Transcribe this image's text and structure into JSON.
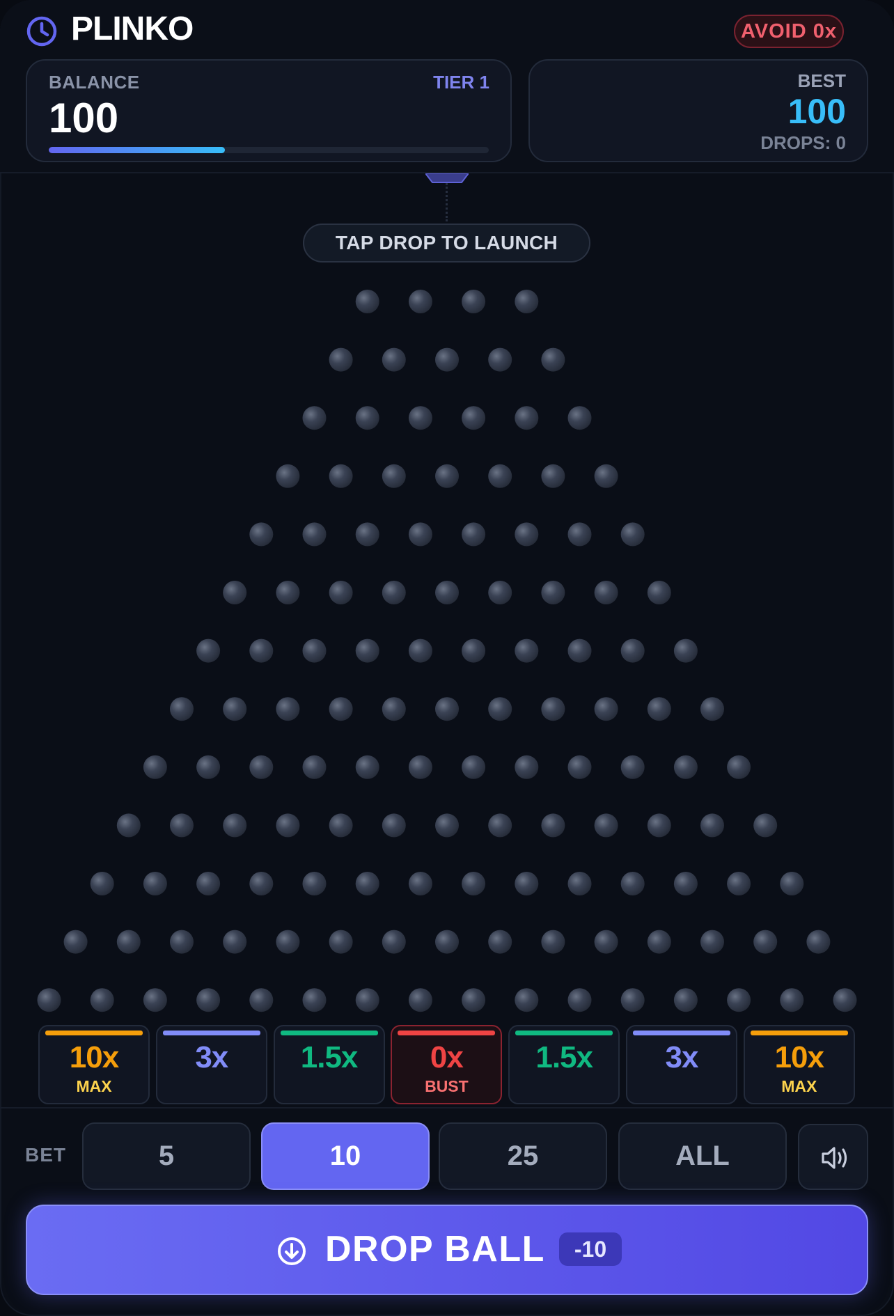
{
  "header": {
    "title": "PLINKO",
    "avoid_badge": "AVOID 0x",
    "icons": {
      "brand": "clock-icon"
    }
  },
  "balance_card": {
    "label": "BALANCE",
    "value": "100",
    "tier": "TIER 1",
    "progress_fraction": 0.4
  },
  "best_card": {
    "label": "BEST",
    "value": "100",
    "drops": "DROPS: 0"
  },
  "board": {
    "hint": "TAP DROP TO LAUNCH",
    "peg_rows": [
      4,
      5,
      6,
      7,
      8,
      9,
      10,
      11,
      12,
      13,
      14,
      15,
      16
    ],
    "peg_color": "#3a4254"
  },
  "buckets": [
    {
      "mult": "10x",
      "sub": "MAX",
      "color": "#f59e0b",
      "sub_color": "#fcd34d"
    },
    {
      "mult": "3x",
      "sub": "",
      "color": "#818cf8",
      "sub_color": "#818cf8"
    },
    {
      "mult": "1.5x",
      "sub": "",
      "color": "#10b981",
      "sub_color": "#10b981"
    },
    {
      "mult": "0x",
      "sub": "BUST",
      "color": "#ef4444",
      "sub_color": "#f87171"
    },
    {
      "mult": "1.5x",
      "sub": "",
      "color": "#10b981",
      "sub_color": "#10b981"
    },
    {
      "mult": "3x",
      "sub": "",
      "color": "#818cf8",
      "sub_color": "#818cf8"
    },
    {
      "mult": "10x",
      "sub": "MAX",
      "color": "#f59e0b",
      "sub_color": "#fcd34d"
    }
  ],
  "controls": {
    "bet_label": "BET",
    "bets": [
      {
        "label": "5",
        "active": false
      },
      {
        "label": "10",
        "active": true
      },
      {
        "label": "25",
        "active": false
      },
      {
        "label": "ALL",
        "active": false
      }
    ],
    "sound_icon": "speaker-icon",
    "drop_label": "DROP BALL",
    "drop_cost": "-10",
    "drop_icon": "arrow-down-circle-icon"
  },
  "colors": {
    "accent": "#6366f1",
    "best": "#38bdf8",
    "danger": "#ef4444"
  }
}
